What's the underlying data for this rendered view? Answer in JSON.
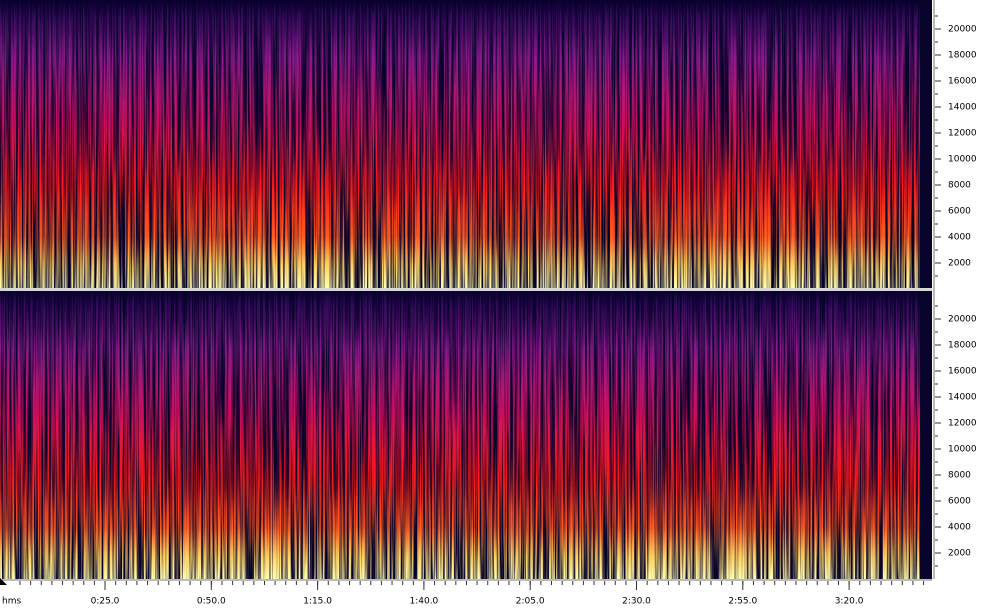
{
  "freq_axis": {
    "ticks": [
      20000,
      18000,
      16000,
      14000,
      12000,
      10000,
      8000,
      6000,
      4000,
      2000
    ]
  },
  "time_axis": {
    "unit": "hms",
    "labels": [
      "0:25.0",
      "0:50.0",
      "1:15.0",
      "1:40.0",
      "2:05.0",
      "2:30.0",
      "2:55.0",
      "3:20.0"
    ]
  }
}
